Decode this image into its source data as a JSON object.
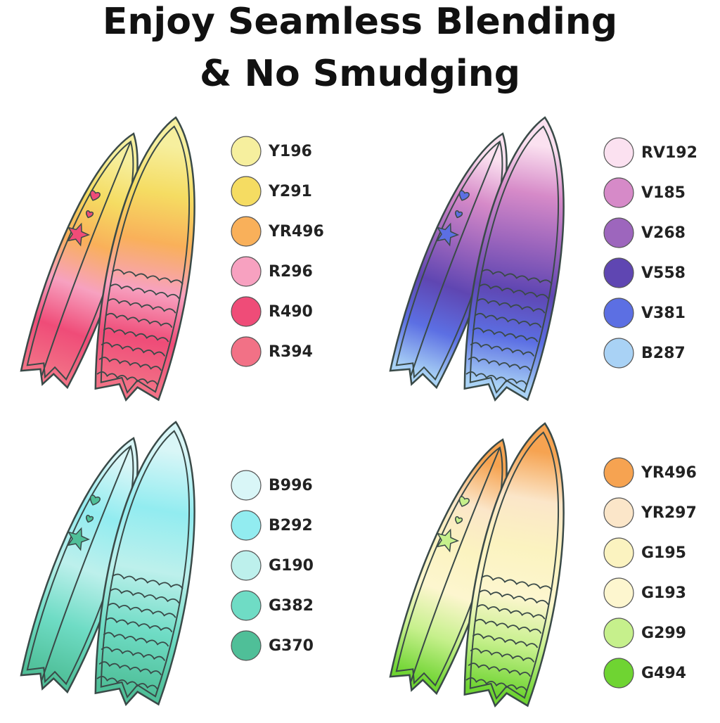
{
  "title": [
    "Enjoy Seamless Blending",
    "& No Smudging"
  ],
  "panels": [
    {
      "swatches": [
        {
          "code": "Y196",
          "color": "#f6ef9e"
        },
        {
          "code": "Y291",
          "color": "#f5dc62"
        },
        {
          "code": "YR496",
          "color": "#f9b05a"
        },
        {
          "code": "R296",
          "color": "#f7a1c0"
        },
        {
          "code": "R490",
          "color": "#ef4c78"
        },
        {
          "code": "R394",
          "color": "#f27186"
        }
      ]
    },
    {
      "swatches": [
        {
          "code": "RV192",
          "color": "#fbe1f0"
        },
        {
          "code": "V185",
          "color": "#d68ac8"
        },
        {
          "code": "V268",
          "color": "#9d66bd"
        },
        {
          "code": "V558",
          "color": "#5f46b2"
        },
        {
          "code": "V381",
          "color": "#5c6fe3"
        },
        {
          "code": "B287",
          "color": "#a9d2f5"
        }
      ]
    },
    {
      "swatches": [
        {
          "code": "B996",
          "color": "#d9f6f7"
        },
        {
          "code": "B292",
          "color": "#92ecf0"
        },
        {
          "code": "G190",
          "color": "#bdf0ec"
        },
        {
          "code": "G382",
          "color": "#6fdcc5"
        },
        {
          "code": "G370",
          "color": "#4fbf98"
        }
      ]
    },
    {
      "swatches": [
        {
          "code": "YR496",
          "color": "#f6a351"
        },
        {
          "code": "YR297",
          "color": "#fbe6c9"
        },
        {
          "code": "G195",
          "color": "#fbf3c0"
        },
        {
          "code": "G193",
          "color": "#fdf6cf"
        },
        {
          "code": "G299",
          "color": "#c6f08c"
        },
        {
          "code": "G494",
          "color": "#6fd432"
        }
      ]
    }
  ]
}
